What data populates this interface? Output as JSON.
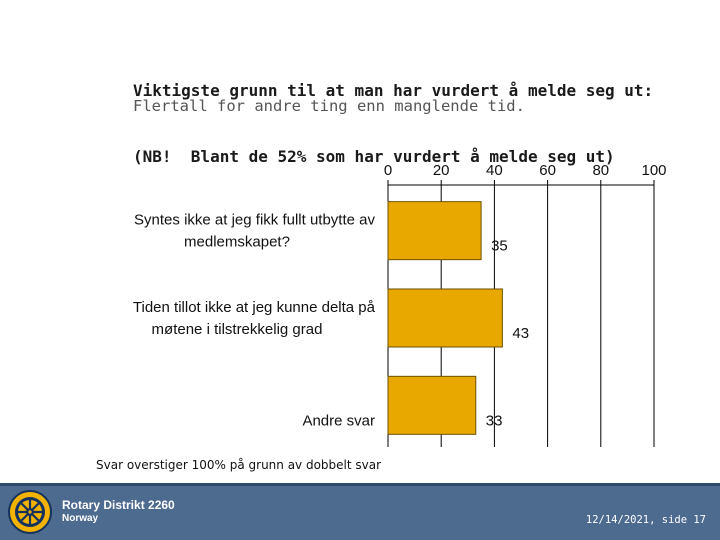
{
  "header": {
    "title_line1": "Viktigste grunn til at man har vurdert å melde seg ut:",
    "title_line2": "(NB!  Blant de 52% som har vurdert å melde seg ut)",
    "subtitle": "Flertall for andre ting enn manglende tid."
  },
  "chart_data": {
    "type": "bar",
    "orientation": "horizontal",
    "categories": [
      [
        "Syntes ikke at jeg fikk fullt utbytte av",
        "medlemskapet?"
      ],
      [
        "Tiden tillot  ikke at jeg kunne  delta på",
        "møtene i tilstrekkelig grad"
      ],
      [
        "Andre svar"
      ]
    ],
    "values": [
      35,
      43,
      33
    ],
    "data_labels": [
      "35",
      "43",
      "33"
    ],
    "xlim": [
      0,
      100
    ],
    "x_ticks": [
      0,
      20,
      40,
      60,
      80,
      100
    ],
    "x_tick_labels": [
      "0",
      "20",
      "40",
      "60",
      "80",
      "100"
    ],
    "axis_position": "top",
    "grid": true,
    "bar_color": "#e8a800",
    "bar_edge_color": "#6b5200"
  },
  "note": "Svar overstiger 100%  på grunn av dobbelt svar",
  "footer": {
    "organization": "Rotary Distrikt 2260",
    "country": "Norway",
    "date_page": "12/14/2021, side 17",
    "logo_icon": "rotary-wheel-icon",
    "background_color": "#4d6a8f"
  }
}
